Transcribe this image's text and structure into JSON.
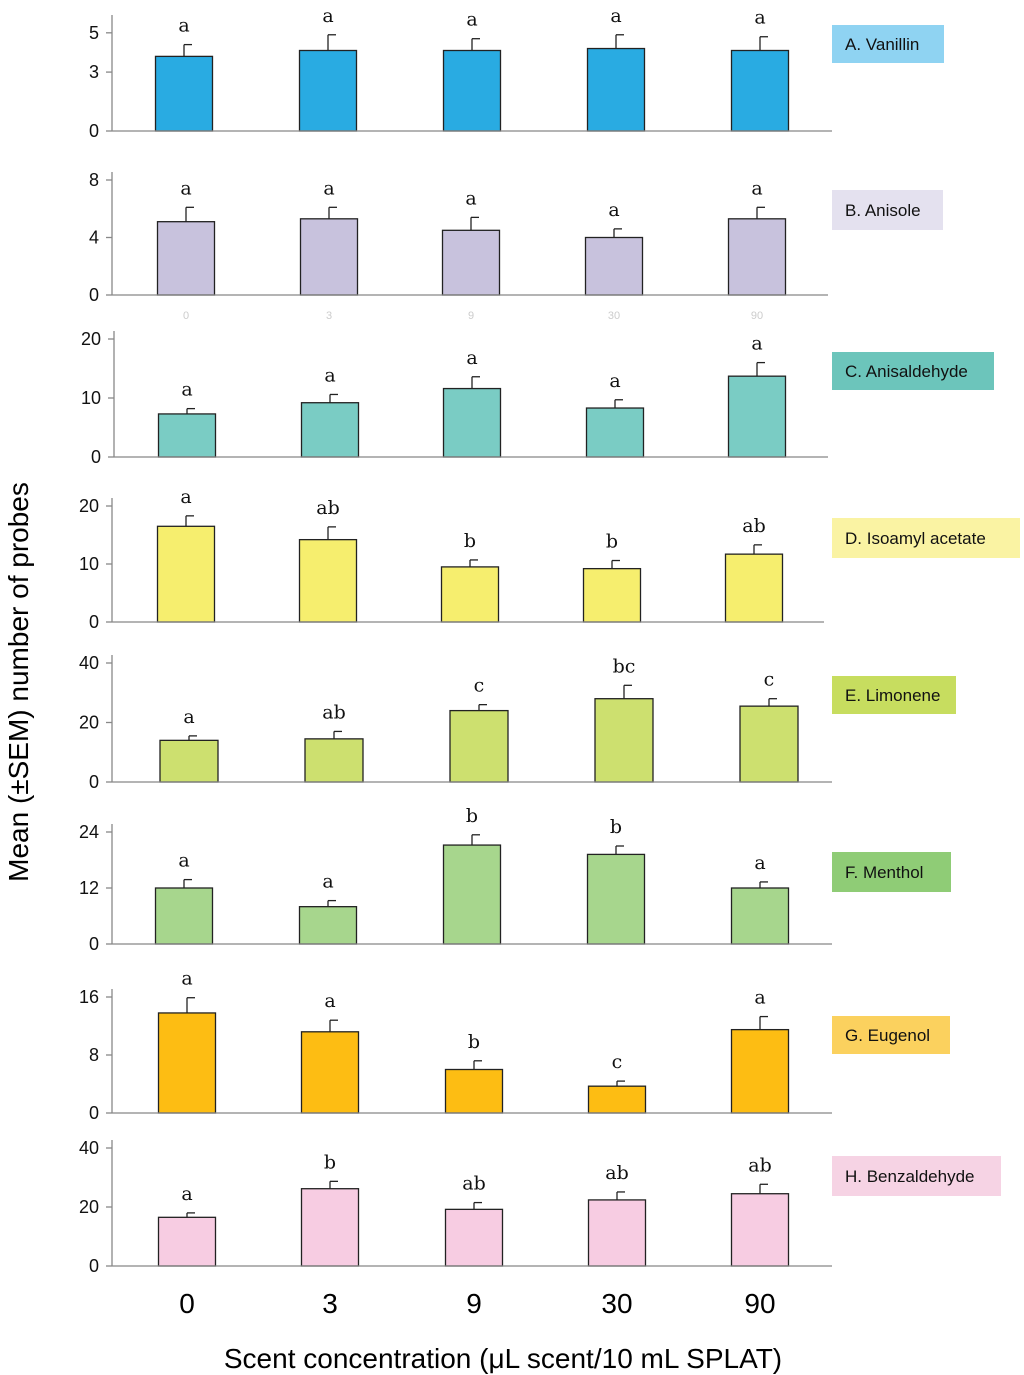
{
  "figure": {
    "ylabel": "Mean (±SEM) number of probes",
    "xlabel": "Scent concentration (μL scent/10 mL SPLAT)"
  },
  "chart_data": [
    {
      "type": "bar",
      "label": "A. Vanillin",
      "color": "#29abe2",
      "label_bg": "#8fd3f2",
      "categories": [
        "0",
        "3",
        "9",
        "30",
        "90"
      ],
      "values": [
        3.8,
        4.1,
        4.1,
        4.2,
        4.1
      ],
      "errors": [
        0.6,
        0.8,
        0.6,
        0.7,
        0.7
      ],
      "letters": [
        "a",
        "a",
        "a",
        "a",
        "a"
      ],
      "ylim": [
        0,
        5.5
      ],
      "yticks": [
        0,
        3,
        5
      ]
    },
    {
      "type": "bar",
      "label": "B. Anisole",
      "color": "#c8c2dd",
      "label_bg": "#e4e1ef",
      "categories": [
        "0",
        "3",
        "9",
        "30",
        "90"
      ],
      "values": [
        5.1,
        5.3,
        4.5,
        4.0,
        5.3
      ],
      "errors": [
        1.0,
        0.8,
        0.9,
        0.6,
        0.8
      ],
      "letters": [
        "a",
        "a",
        "a",
        "a",
        "a"
      ],
      "ylim": [
        0,
        8
      ],
      "yticks": [
        0,
        4,
        8
      ],
      "faint_tick_labels": [
        "0",
        "3",
        "9",
        "30",
        "90"
      ]
    },
    {
      "type": "bar",
      "label": "C. Anisaldehyde",
      "color": "#7accc4",
      "label_bg": "#6cc5bb",
      "categories": [
        "0",
        "3",
        "9",
        "30",
        "90"
      ],
      "values": [
        7.3,
        9.2,
        11.6,
        8.3,
        13.7
      ],
      "errors": [
        0.9,
        1.4,
        2.0,
        1.4,
        2.3
      ],
      "letters": [
        "a",
        "a",
        "a",
        "a",
        "a"
      ],
      "ylim": [
        0,
        20
      ],
      "yticks": [
        0,
        10,
        20
      ]
    },
    {
      "type": "bar",
      "label": "D. Isoamyl acetate",
      "color": "#f6ee6e",
      "label_bg": "#faf3a3",
      "categories": [
        "0",
        "3",
        "9",
        "30",
        "90"
      ],
      "values": [
        16.5,
        14.2,
        9.5,
        9.2,
        11.7
      ],
      "errors": [
        1.8,
        2.2,
        1.2,
        1.4,
        1.6
      ],
      "letters": [
        "a",
        "ab",
        "b",
        "b",
        "ab"
      ],
      "ylim": [
        0,
        20
      ],
      "yticks": [
        0,
        10,
        20
      ]
    },
    {
      "type": "bar",
      "label": "E. Limonene",
      "color": "#cde06f",
      "label_bg": "#c7dd5f",
      "categories": [
        "0",
        "3",
        "9",
        "30",
        "90"
      ],
      "values": [
        14.0,
        14.5,
        24.0,
        28.0,
        25.5
      ],
      "errors": [
        1.5,
        2.5,
        2.0,
        4.5,
        2.5
      ],
      "letters": [
        "a",
        "ab",
        "c",
        "bc",
        "c"
      ],
      "ylim": [
        0,
        40
      ],
      "yticks": [
        0,
        20,
        40
      ]
    },
    {
      "type": "bar",
      "label": "F. Menthol",
      "color": "#a7d68d",
      "label_bg": "#8fcc76",
      "categories": [
        "0",
        "3",
        "9",
        "30",
        "90"
      ],
      "values": [
        12.0,
        8.0,
        21.2,
        19.2,
        12.0
      ],
      "errors": [
        1.8,
        1.3,
        2.2,
        1.8,
        1.3
      ],
      "letters": [
        "a",
        "a",
        "b",
        "b",
        "a"
      ],
      "ylim": [
        0,
        24
      ],
      "yticks": [
        0,
        12,
        24
      ]
    },
    {
      "type": "bar",
      "label": "G. Eugenol",
      "color": "#fdbd13",
      "label_bg": "#fbd15e",
      "categories": [
        "0",
        "3",
        "9",
        "30",
        "90"
      ],
      "values": [
        13.8,
        11.2,
        6.0,
        3.7,
        11.5
      ],
      "errors": [
        2.1,
        1.6,
        1.2,
        0.7,
        1.8
      ],
      "letters": [
        "a",
        "a",
        "b",
        "c",
        "a"
      ],
      "ylim": [
        0,
        16
      ],
      "yticks": [
        0,
        8,
        16
      ]
    },
    {
      "type": "bar",
      "label": "H. Benzaldehyde",
      "color": "#f7cce2",
      "label_bg": "#f6d3e4",
      "categories": [
        "0",
        "3",
        "9",
        "30",
        "90"
      ],
      "values": [
        16.5,
        26.2,
        19.2,
        22.4,
        24.5
      ],
      "errors": [
        1.5,
        2.5,
        2.3,
        2.7,
        3.2
      ],
      "letters": [
        "a",
        "b",
        "ab",
        "ab",
        "ab"
      ],
      "ylim": [
        0,
        40
      ],
      "yticks": [
        0,
        20,
        40
      ],
      "show_x_ticks": true
    }
  ]
}
